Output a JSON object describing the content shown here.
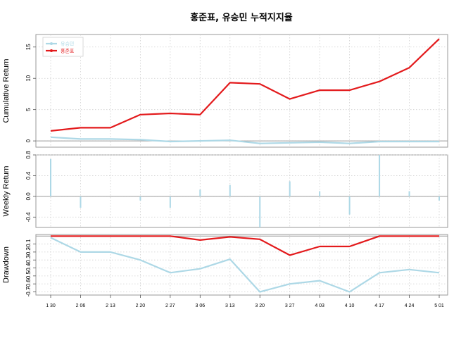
{
  "chart_data": {
    "title": "홍준표, 유승민 누적지지율",
    "x": [
      "1 30",
      "2 06",
      "2 13",
      "2 20",
      "2 27",
      "3 06",
      "3 13",
      "3 20",
      "3 27",
      "4 03",
      "4 10",
      "4 17",
      "4 24",
      "5 01"
    ],
    "legend": {
      "position": "top-left",
      "entries": [
        {
          "name": "유승민",
          "color": "#ADD8E6"
        },
        {
          "name": "홍준표",
          "color": "#E31A1C"
        }
      ]
    },
    "panels": [
      {
        "type": "line",
        "ylabel": "Cumulative Return",
        "ylim": [
          -1,
          17
        ],
        "yticks": [
          0,
          5,
          10,
          15
        ],
        "grid": true,
        "series": [
          {
            "name": "유승민",
            "color": "#ADD8E6",
            "values": [
              0.6,
              0.3,
              0.3,
              0.2,
              -0.1,
              0.0,
              0.1,
              -0.4,
              -0.3,
              -0.2,
              -0.4,
              -0.1,
              -0.1,
              -0.1
            ]
          },
          {
            "name": "홍준표",
            "color": "#E31A1C",
            "values": [
              1.6,
              2.1,
              2.1,
              4.2,
              4.4,
              4.2,
              9.3,
              9.1,
              6.7,
              8.1,
              8.1,
              9.5,
              11.7,
              16.3
            ]
          }
        ]
      },
      {
        "type": "bar",
        "ylabel": "Weekly Return",
        "ylim": [
          -0.6,
          0.8
        ],
        "yticks": [
          -0.4,
          0.0,
          0.4,
          0.8
        ],
        "tick_labels": [
          "-0.4",
          "0.0",
          "0.4",
          "0.8"
        ],
        "grid": true,
        "series": [
          {
            "name": "유승민",
            "color": "#ADD8E6",
            "values": [
              0.72,
              -0.22,
              0.0,
              -0.08,
              -0.22,
              0.13,
              0.22,
              -0.6,
              0.29,
              0.1,
              -0.35,
              0.8,
              0.1,
              -0.08
            ]
          }
        ]
      },
      {
        "type": "line",
        "ylabel": "Drawdown",
        "ylim": [
          -0.74,
          0.02
        ],
        "yticks": [
          -0.1,
          -0.2,
          -0.3,
          -0.4,
          -0.5,
          -0.6,
          -0.7
        ],
        "tick_labels": [
          "-0.1",
          "-0.2",
          "-0.3",
          "-0.4",
          "-0.5",
          "-0.6",
          "-0.7"
        ],
        "grid": true,
        "series": [
          {
            "name": "유승민",
            "color": "#ADD8E6",
            "values": [
              -0.02,
              -0.2,
              -0.2,
              -0.3,
              -0.46,
              -0.41,
              -0.29,
              -0.7,
              -0.6,
              -0.56,
              -0.7,
              -0.46,
              -0.42,
              -0.46
            ]
          },
          {
            "name": "홍준표",
            "color": "#E31A1C",
            "values": [
              0.0,
              0.0,
              0.0,
              0.0,
              0.0,
              -0.05,
              -0.01,
              -0.04,
              -0.24,
              -0.13,
              -0.13,
              0.0,
              0.0,
              0.0
            ]
          }
        ]
      }
    ]
  }
}
